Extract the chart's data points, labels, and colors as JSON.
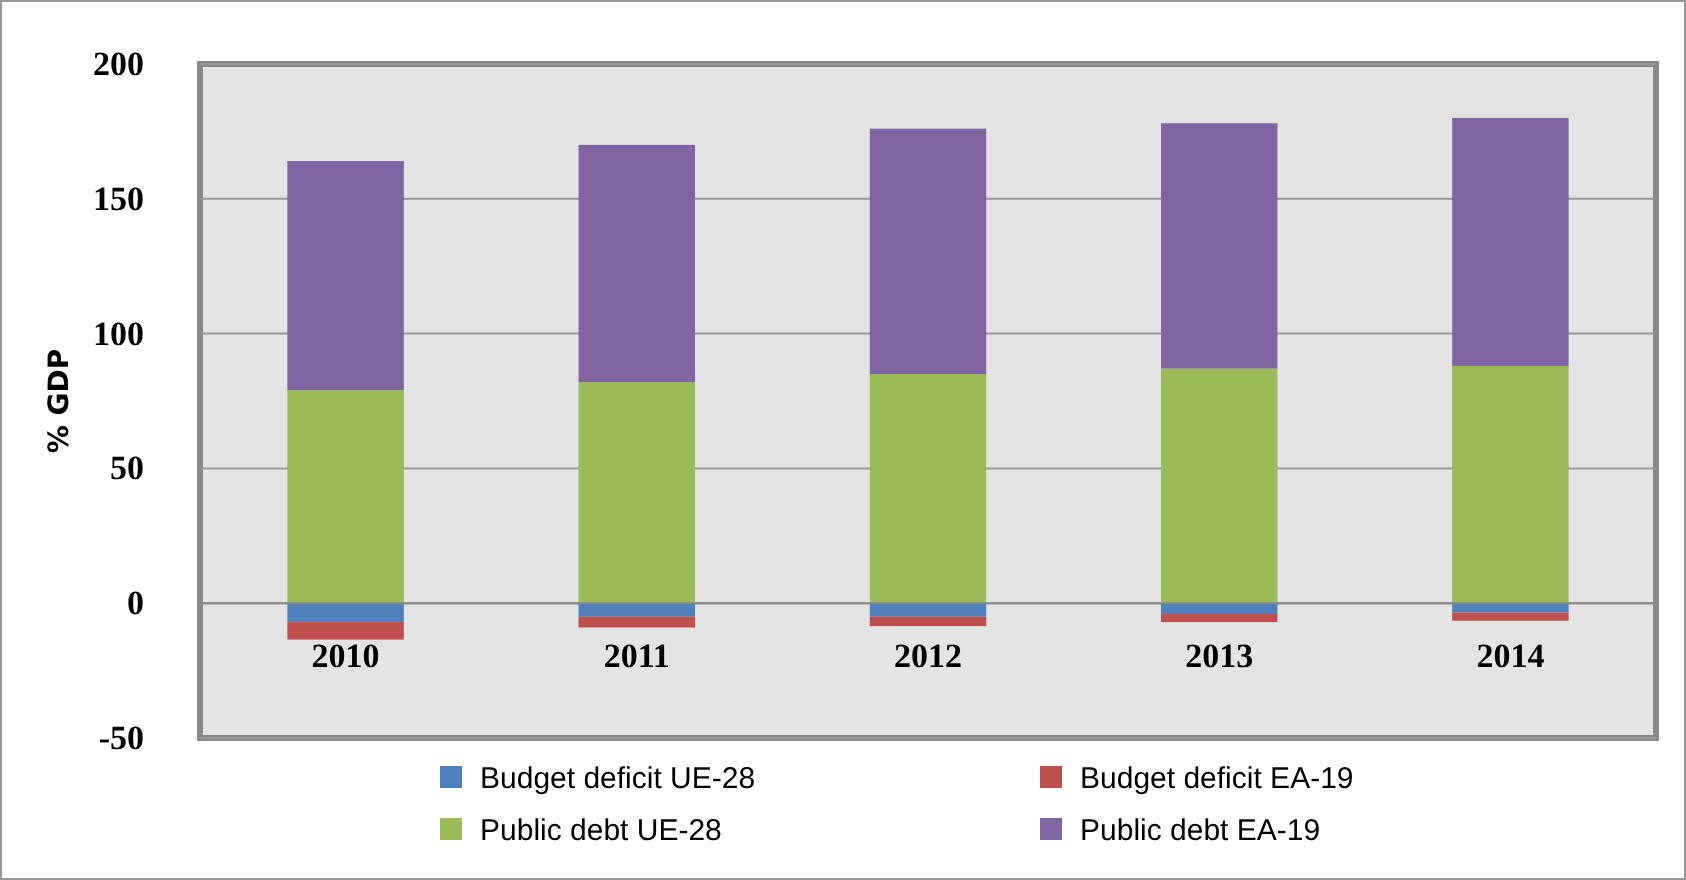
{
  "chart_data": {
    "type": "bar",
    "stacked": true,
    "ylabel": "% GDP",
    "categories": [
      "2010",
      "2011",
      "2012",
      "2013",
      "2014"
    ],
    "series": [
      {
        "name": "Budget deficit UE-28",
        "color": "#4f81bd",
        "values": [
          -7,
          -5,
          -5,
          -4,
          -3.5
        ]
      },
      {
        "name": "Budget deficit EA-19",
        "color": "#c0504d",
        "values": [
          -6.5,
          -4,
          -3.5,
          -3,
          -3
        ]
      },
      {
        "name": "Public debt UE-28",
        "color": "#9bbb59",
        "values": [
          79,
          82,
          85,
          87,
          88
        ]
      },
      {
        "name": "Public debt EA-19",
        "color": "#8064a2",
        "values": [
          85,
          88,
          91,
          91,
          92
        ]
      }
    ],
    "ylim": [
      -50,
      200
    ],
    "yticks": [
      -50,
      0,
      50,
      100,
      150,
      200
    ],
    "grid": "y",
    "legend": "bottom"
  }
}
